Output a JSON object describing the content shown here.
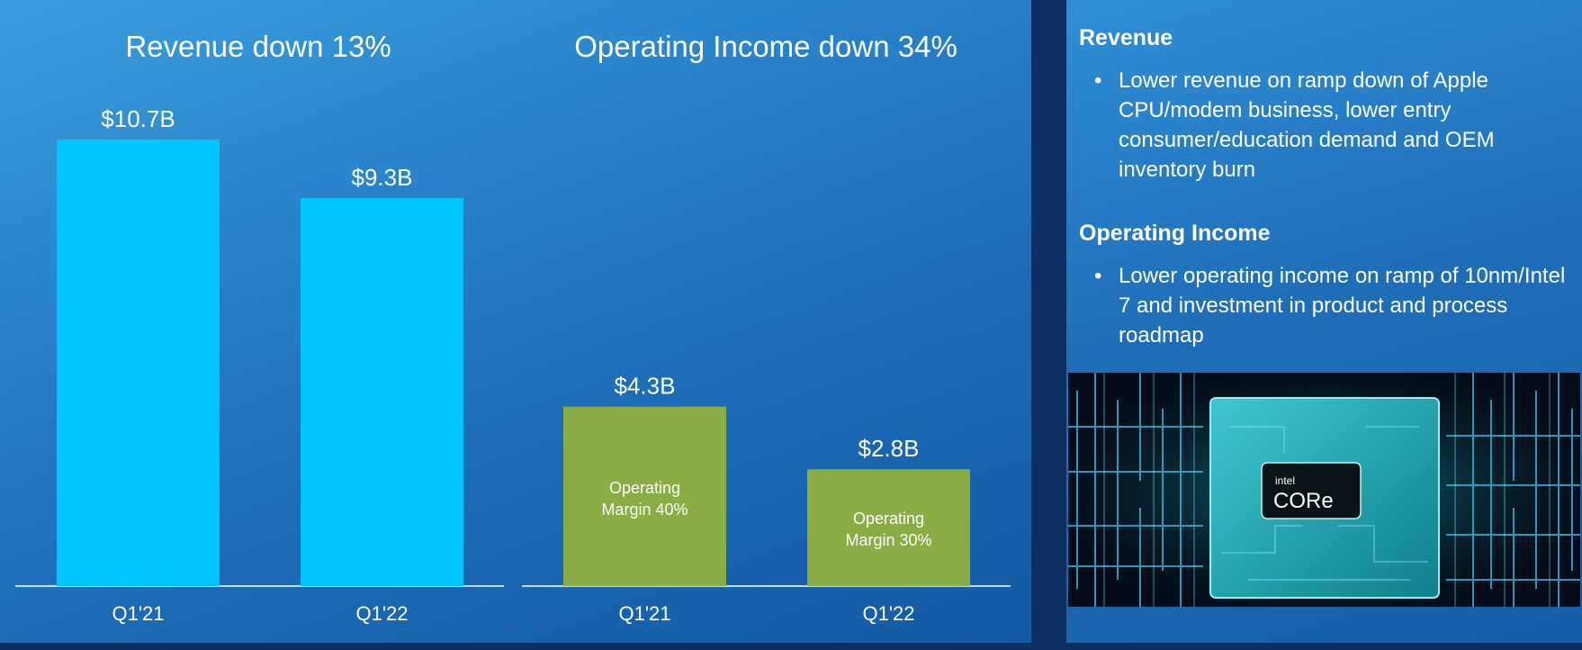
{
  "charts": {
    "revenue_title": "Revenue down 13%",
    "income_title": "Operating Income down 34%"
  },
  "chart_data": [
    {
      "type": "bar",
      "title": "Revenue down 13%",
      "categories": [
        "Q1'21",
        "Q1'22"
      ],
      "values": [
        10.7,
        9.3
      ],
      "value_labels": [
        "$10.7B",
        "$9.3B"
      ],
      "unit": "$B",
      "color": "#00c5fb"
    },
    {
      "type": "bar",
      "title": "Operating Income down 34%",
      "categories": [
        "Q1'21",
        "Q1'22"
      ],
      "values": [
        4.3,
        2.8
      ],
      "value_labels": [
        "$4.3B",
        "$2.8B"
      ],
      "unit": "$B",
      "color": "#8aac45",
      "annotations": [
        [
          "Operating",
          "Margin 40%"
        ],
        [
          "Operating",
          "Margin 30%"
        ]
      ]
    }
  ],
  "commentary": {
    "revenue_heading": "Revenue",
    "revenue_bullet": "Lower revenue on ramp down of Apple CPU/modem business, lower entry consumer/education demand and OEM inventory burn",
    "income_heading": "Operating Income",
    "income_bullet": "Lower operating income on ramp of 10nm/Intel 7 and investment in product and process roadmap",
    "bullet_glyph": "•"
  },
  "product_image": {
    "brand_small": "intel",
    "brand_large": "CORe"
  },
  "colors": {
    "revenue_bar": "#00c5fb",
    "income_bar": "#8aac45",
    "background": "#1f74be"
  }
}
